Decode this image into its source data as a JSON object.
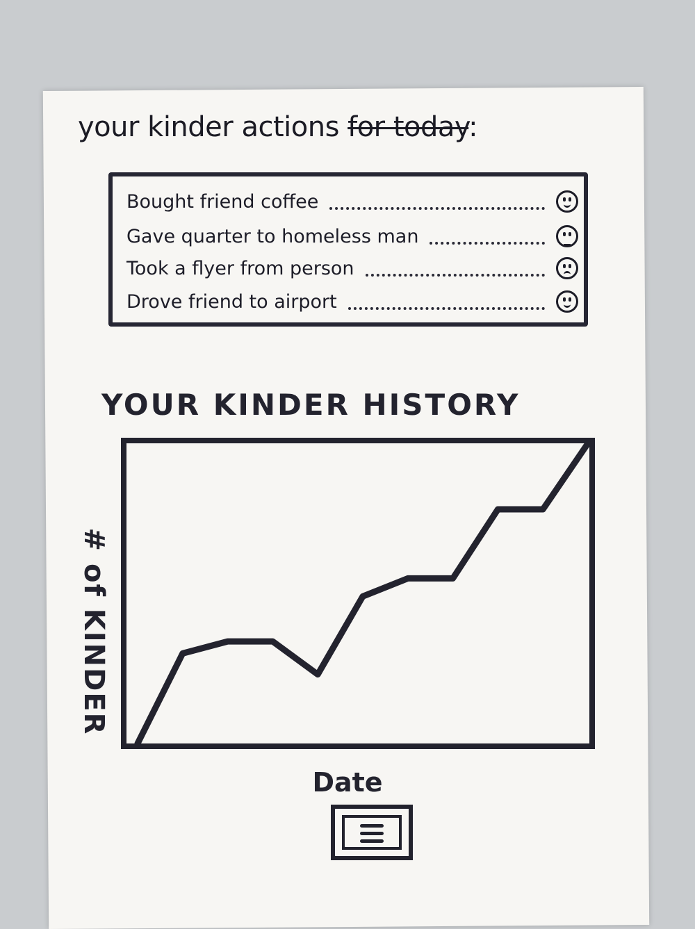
{
  "header": {
    "title_prefix": "your kinder actions ",
    "title_struck": "for today",
    "title_suffix": ":"
  },
  "actions": [
    {
      "text": "Bought friend coffee",
      "face": "happy-face-icon"
    },
    {
      "text": "Gave quarter to homeless man",
      "face": "neutral-face-icon"
    },
    {
      "text": "Took a flyer from person",
      "face": "sad-face-icon"
    },
    {
      "text": "Drove friend to airport",
      "face": "happy-face-icon"
    }
  ],
  "chart_data": {
    "type": "line",
    "title": "YOUR KINDER HISTORY",
    "xlabel": "Date",
    "ylabel": "# of KINDER",
    "x": [
      0,
      1,
      2,
      3,
      4,
      5,
      6,
      7,
      8,
      9,
      10
    ],
    "series": [
      {
        "values": [
          0,
          30,
          34,
          34,
          23,
          49,
          55,
          55,
          78,
          78,
          100
        ]
      }
    ],
    "ylim": [
      0,
      100
    ],
    "grid": false
  },
  "menu": {
    "icon": "hamburger-menu-icon"
  }
}
